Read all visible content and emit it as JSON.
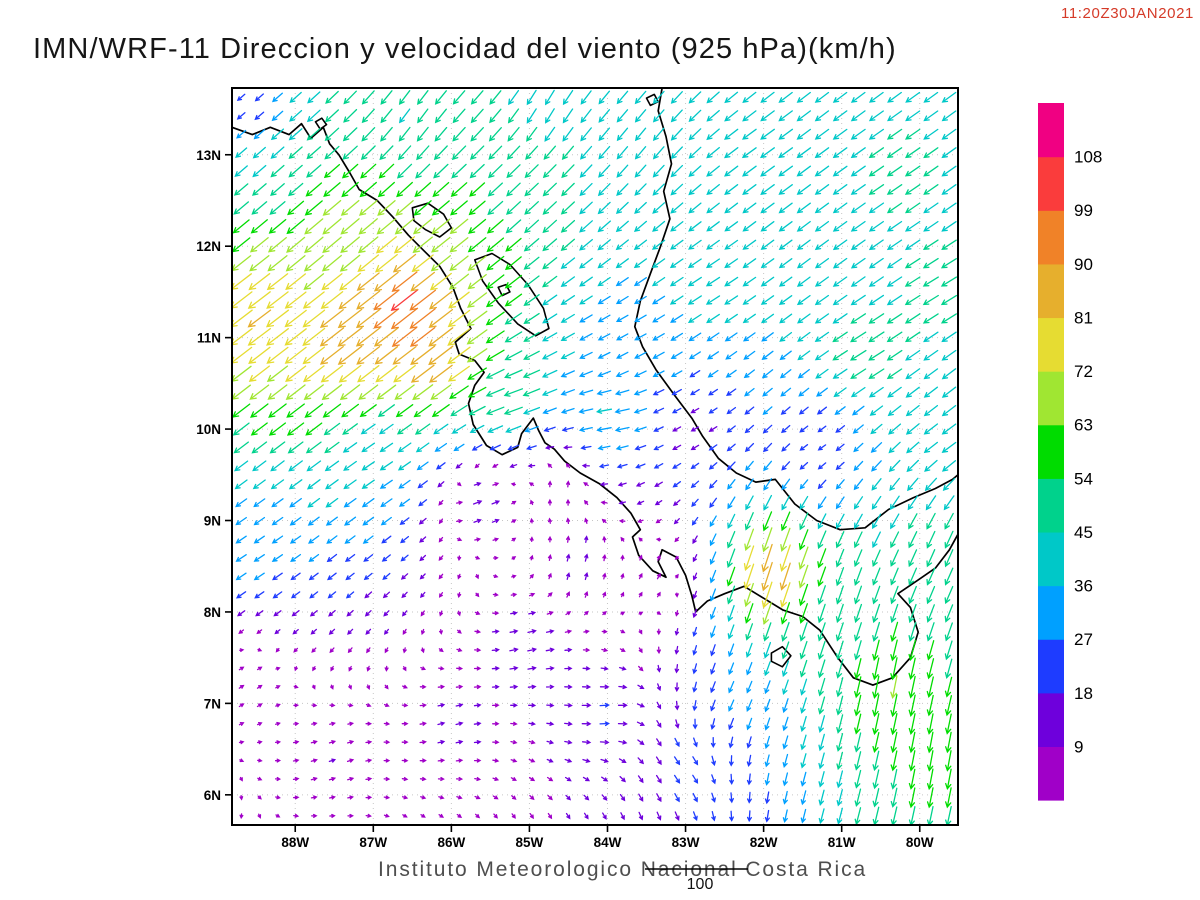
{
  "header": {
    "timestamp": "11:20Z30JAN2021",
    "title": "IMN/WRF-11 Direccion y velocidad del viento (925 hPa)(km/h)"
  },
  "footer": {
    "institution": "Instituto Meteorologico Nacional Costa Rica",
    "reference_vector_label": "100"
  },
  "chart_data": {
    "type": "vector_field",
    "model": "IMN/WRF-11",
    "variable": "Direccion y velocidad del viento",
    "level": "925 hPa",
    "units": "km/h",
    "valid_time": "11:20Z30JAN2021",
    "title": "IMN/WRF-11 Direccion y velocidad del viento (925 hPa)(km/h)",
    "legend_position": "right",
    "grid": "dotted",
    "lon_range": [
      79.51,
      88.81
    ],
    "lat_range": [
      5.67,
      13.73
    ],
    "x_axis": {
      "ticks": [
        {
          "value": 88,
          "label": "88W"
        },
        {
          "value": 87,
          "label": "87W"
        },
        {
          "value": 86,
          "label": "86W"
        },
        {
          "value": 85,
          "label": "85W"
        },
        {
          "value": 84,
          "label": "84W"
        },
        {
          "value": 83,
          "label": "83W"
        },
        {
          "value": 82,
          "label": "82W"
        },
        {
          "value": 81,
          "label": "81W"
        },
        {
          "value": 80,
          "label": "80W"
        }
      ]
    },
    "y_axis": {
      "ticks": [
        {
          "value": 13,
          "label": "13N"
        },
        {
          "value": 12,
          "label": "12N"
        },
        {
          "value": 11,
          "label": "11N"
        },
        {
          "value": 10,
          "label": "10N"
        },
        {
          "value": 9,
          "label": "9N"
        },
        {
          "value": 8,
          "label": "8N"
        },
        {
          "value": 7,
          "label": "7N"
        },
        {
          "value": 6,
          "label": "6N"
        }
      ]
    },
    "colorbar": {
      "levels": [
        9,
        18,
        27,
        36,
        45,
        54,
        63,
        72,
        81,
        90,
        99,
        108
      ],
      "colors": [
        "#A000C8",
        "#6E00DC",
        "#1E3CFF",
        "#00A0FF",
        "#00C8C8",
        "#00D28C",
        "#00DC00",
        "#A0E632",
        "#E6DC32",
        "#E6AF2D",
        "#F08228",
        "#FA3C3C",
        "#F00082"
      ]
    },
    "wind_field": {
      "grid": {
        "cols": 40,
        "rows": 40,
        "lon_start": 88.69,
        "lon_step": 0.2325,
        "lat_start": 5.77,
        "lat_step": 0.2015
      },
      "control_points": [
        {
          "lon": 88.7,
          "lat": 13.55,
          "u": -14,
          "v": -12
        },
        {
          "lon": 88.15,
          "lat": 12.9,
          "u": -34,
          "v": -30
        },
        {
          "lon": 87.6,
          "lat": 12.1,
          "u": -52,
          "v": -44
        },
        {
          "lon": 88.45,
          "lat": 11.2,
          "u": -66,
          "v": -50
        },
        {
          "lon": 87.3,
          "lat": 11.0,
          "u": -72,
          "v": -56
        },
        {
          "lon": 86.55,
          "lat": 11.35,
          "u": -84,
          "v": -66
        },
        {
          "lon": 86.2,
          "lat": 10.85,
          "u": -74,
          "v": -57
        },
        {
          "lon": 85.9,
          "lat": 11.95,
          "u": -50,
          "v": -40
        },
        {
          "lon": 85.0,
          "lat": 12.6,
          "u": -36,
          "v": -34
        },
        {
          "lon": 86.5,
          "lat": 13.45,
          "u": -26,
          "v": -36
        },
        {
          "lon": 84.8,
          "lat": 13.5,
          "u": -22,
          "v": -38
        },
        {
          "lon": 83.6,
          "lat": 13.2,
          "u": -26,
          "v": -32
        },
        {
          "lon": 82.0,
          "lat": 13.0,
          "u": -36,
          "v": -26
        },
        {
          "lon": 80.3,
          "lat": 12.8,
          "u": -38,
          "v": -26
        },
        {
          "lon": 79.7,
          "lat": 11.5,
          "u": -40,
          "v": -24
        },
        {
          "lon": 82.7,
          "lat": 11.5,
          "u": -34,
          "v": -22
        },
        {
          "lon": 83.8,
          "lat": 10.9,
          "u": -26,
          "v": -14
        },
        {
          "lon": 82.9,
          "lat": 10.0,
          "u": -13,
          "v": -7
        },
        {
          "lon": 84.0,
          "lat": 10.15,
          "u": -40,
          "v": -6
        },
        {
          "lon": 85.25,
          "lat": 10.3,
          "u": -52,
          "v": -18
        },
        {
          "lon": 84.6,
          "lat": 9.4,
          "u": 4,
          "v": 10
        },
        {
          "lon": 85.6,
          "lat": 9.2,
          "u": 20,
          "v": 8
        },
        {
          "lon": 86.9,
          "lat": 9.7,
          "u": -30,
          "v": -20
        },
        {
          "lon": 88.55,
          "lat": 8.6,
          "u": -24,
          "v": -16
        },
        {
          "lon": 88.6,
          "lat": 7.2,
          "u": 6,
          "v": 4
        },
        {
          "lon": 87.5,
          "lat": 6.4,
          "u": 9,
          "v": 3
        },
        {
          "lon": 86.0,
          "lat": 6.8,
          "u": 11,
          "v": 3
        },
        {
          "lon": 85.0,
          "lat": 7.6,
          "u": 18,
          "v": 4
        },
        {
          "lon": 84.0,
          "lat": 6.9,
          "u": 20,
          "v": 2
        },
        {
          "lon": 83.0,
          "lat": 6.3,
          "u": 12,
          "v": -16
        },
        {
          "lon": 82.4,
          "lat": 7.0,
          "u": -12,
          "v": -26
        },
        {
          "lon": 83.4,
          "lat": 8.4,
          "u": 5,
          "v": 9
        },
        {
          "lon": 81.9,
          "lat": 8.45,
          "u": -28,
          "v": -88
        },
        {
          "lon": 81.0,
          "lat": 8.0,
          "u": -16,
          "v": -48
        },
        {
          "lon": 80.4,
          "lat": 7.2,
          "u": -12,
          "v": -64
        },
        {
          "lon": 79.8,
          "lat": 6.4,
          "u": -10,
          "v": -56
        },
        {
          "lon": 79.7,
          "lat": 8.6,
          "u": -20,
          "v": -46
        },
        {
          "lon": 79.6,
          "lat": 9.9,
          "u": -36,
          "v": -26
        },
        {
          "lon": 81.3,
          "lat": 9.8,
          "u": -14,
          "v": -9
        },
        {
          "lon": 80.7,
          "lat": 10.8,
          "u": -42,
          "v": -26
        },
        {
          "lon": 84.35,
          "lat": 8.55,
          "u": 4,
          "v": 14
        }
      ]
    },
    "coastlines": {
      "open": [
        [
          [
            88.81,
            13.3
          ],
          [
            88.55,
            13.22
          ],
          [
            88.32,
            13.3
          ],
          [
            88.08,
            13.22
          ],
          [
            87.92,
            13.34
          ],
          [
            87.8,
            13.18
          ],
          [
            87.64,
            13.3
          ],
          [
            87.56,
            13.12
          ],
          [
            87.44,
            13.0
          ],
          [
            87.3,
            12.8
          ],
          [
            87.18,
            12.62
          ],
          [
            86.95,
            12.5
          ],
          [
            86.75,
            12.32
          ],
          [
            86.55,
            12.12
          ],
          [
            86.35,
            11.95
          ],
          [
            86.15,
            11.78
          ],
          [
            85.98,
            11.55
          ],
          [
            85.88,
            11.32
          ],
          [
            85.75,
            11.1
          ],
          [
            85.95,
            10.95
          ],
          [
            85.9,
            10.82
          ],
          [
            85.7,
            10.75
          ],
          [
            85.58,
            10.62
          ],
          [
            85.7,
            10.48
          ],
          [
            85.78,
            10.28
          ],
          [
            85.72,
            10.05
          ],
          [
            85.55,
            9.82
          ],
          [
            85.35,
            9.72
          ],
          [
            85.15,
            9.8
          ],
          [
            85.1,
            9.95
          ],
          [
            84.95,
            10.12
          ],
          [
            84.88,
            9.98
          ],
          [
            84.8,
            9.85
          ],
          [
            84.68,
            9.78
          ],
          [
            84.55,
            9.65
          ],
          [
            84.35,
            9.52
          ],
          [
            84.1,
            9.4
          ],
          [
            83.88,
            9.25
          ],
          [
            83.7,
            9.08
          ],
          [
            83.58,
            8.9
          ],
          [
            83.68,
            8.82
          ],
          [
            83.6,
            8.62
          ],
          [
            83.42,
            8.45
          ],
          [
            83.25,
            8.38
          ],
          [
            83.35,
            8.55
          ],
          [
            83.3,
            8.68
          ],
          [
            83.12,
            8.6
          ],
          [
            83.0,
            8.4
          ],
          [
            82.92,
            8.18
          ],
          [
            82.87,
            8.0
          ],
          [
            82.72,
            8.12
          ],
          [
            82.5,
            8.2
          ],
          [
            82.25,
            8.28
          ],
          [
            82.0,
            8.15
          ],
          [
            81.75,
            8.02
          ],
          [
            81.5,
            7.95
          ],
          [
            81.28,
            7.8
          ],
          [
            81.05,
            7.5
          ],
          [
            80.85,
            7.28
          ],
          [
            80.6,
            7.2
          ],
          [
            80.35,
            7.28
          ],
          [
            80.12,
            7.5
          ],
          [
            80.02,
            7.78
          ],
          [
            80.12,
            8.05
          ],
          [
            80.28,
            8.2
          ],
          [
            80.02,
            8.35
          ],
          [
            79.8,
            8.48
          ],
          [
            79.62,
            8.68
          ],
          [
            79.51,
            8.85
          ]
        ],
        [
          [
            83.3,
            13.73
          ],
          [
            83.35,
            13.48
          ],
          [
            83.25,
            13.2
          ],
          [
            83.18,
            12.9
          ],
          [
            83.28,
            12.6
          ],
          [
            83.2,
            12.3
          ],
          [
            83.32,
            12.0
          ],
          [
            83.45,
            11.7
          ],
          [
            83.58,
            11.4
          ],
          [
            83.65,
            11.12
          ],
          [
            83.55,
            10.9
          ],
          [
            83.38,
            10.65
          ],
          [
            83.15,
            10.38
          ],
          [
            82.92,
            10.12
          ],
          [
            82.78,
            9.92
          ],
          [
            82.58,
            9.68
          ],
          [
            82.35,
            9.52
          ],
          [
            82.1,
            9.42
          ],
          [
            81.85,
            9.45
          ],
          [
            81.6,
            9.18
          ],
          [
            81.32,
            9.0
          ],
          [
            81.02,
            8.9
          ],
          [
            80.7,
            8.92
          ],
          [
            80.4,
            9.12
          ],
          [
            80.08,
            9.25
          ],
          [
            79.8,
            9.35
          ],
          [
            79.58,
            9.45
          ],
          [
            79.51,
            9.5
          ]
        ]
      ],
      "closed": [
        [
          [
            86.5,
            12.42
          ],
          [
            86.3,
            12.47
          ],
          [
            86.1,
            12.35
          ],
          [
            86.0,
            12.2
          ],
          [
            86.15,
            12.1
          ],
          [
            86.33,
            12.18
          ],
          [
            86.48,
            12.28
          ]
        ],
        [
          [
            85.7,
            11.85
          ],
          [
            85.48,
            11.92
          ],
          [
            85.25,
            11.8
          ],
          [
            85.02,
            11.58
          ],
          [
            84.82,
            11.32
          ],
          [
            84.75,
            11.1
          ],
          [
            84.92,
            11.02
          ],
          [
            85.15,
            11.15
          ],
          [
            85.4,
            11.38
          ],
          [
            85.6,
            11.62
          ]
        ],
        [
          [
            85.4,
            11.55
          ],
          [
            85.3,
            11.58
          ],
          [
            85.25,
            11.5
          ],
          [
            85.35,
            11.46
          ]
        ],
        [
          [
            81.9,
            7.55
          ],
          [
            81.76,
            7.62
          ],
          [
            81.65,
            7.52
          ],
          [
            81.76,
            7.4
          ],
          [
            81.9,
            7.46
          ]
        ],
        [
          [
            87.74,
            13.36
          ],
          [
            87.66,
            13.4
          ],
          [
            87.6,
            13.33
          ],
          [
            87.68,
            13.28
          ]
        ],
        [
          [
            83.5,
            13.62
          ],
          [
            83.4,
            13.66
          ],
          [
            83.35,
            13.58
          ],
          [
            83.45,
            13.54
          ]
        ]
      ]
    }
  }
}
